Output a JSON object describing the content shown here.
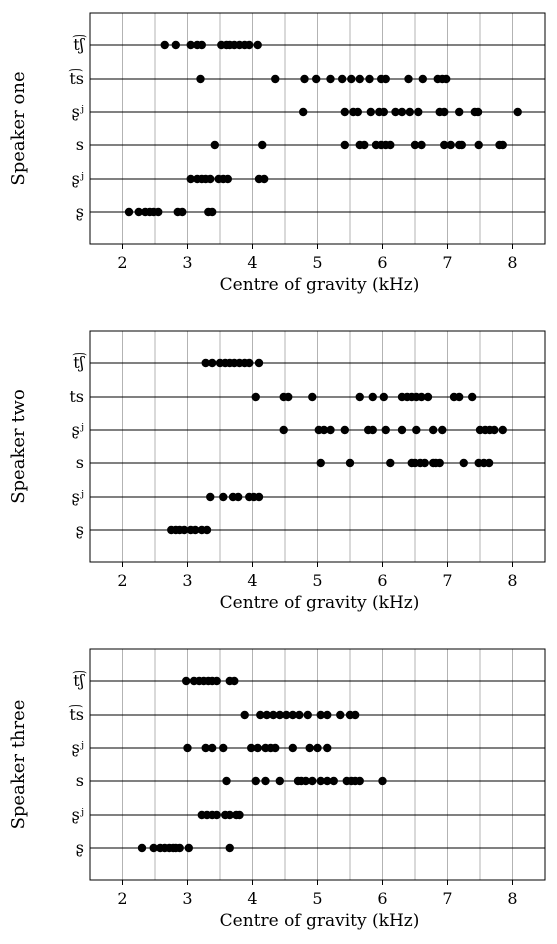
{
  "chart_data": [
    {
      "type": "scatter",
      "ylabel": "Speaker one",
      "xlabel": "Centre of gravity (kHz)",
      "xlim": [
        1.5,
        8.5
      ],
      "x_ticks": [
        "2",
        "3",
        "4",
        "5",
        "6",
        "7",
        "8"
      ],
      "categories": [
        "t͡ʃ",
        "t͡s",
        "ʂʲ",
        "s",
        "ʂʲ",
        "ʂ"
      ],
      "grid": "vertical",
      "series": [
        {
          "category": "t͡ʃ",
          "x": [
            2.65,
            2.82,
            3.05,
            3.15,
            3.22,
            3.52,
            3.6,
            3.65,
            3.72,
            3.8,
            3.88,
            3.95,
            4.08
          ]
        },
        {
          "category": "t͡s",
          "x": [
            3.2,
            4.35,
            4.8,
            4.98,
            5.2,
            5.38,
            5.52,
            5.65,
            5.8,
            5.98,
            6.05,
            6.4,
            6.62,
            6.85,
            6.92,
            6.98
          ]
        },
        {
          "category": "ʂʲ",
          "x": [
            4.78,
            5.42,
            5.55,
            5.62,
            5.82,
            5.95,
            6.02,
            6.2,
            6.3,
            6.42,
            6.55,
            6.88,
            6.95,
            7.18,
            7.42,
            7.47,
            8.08
          ]
        },
        {
          "category": "s",
          "x": [
            3.42,
            4.15,
            5.42,
            5.65,
            5.72,
            5.9,
            5.98,
            6.05,
            6.12,
            6.5,
            6.6,
            6.95,
            7.05,
            7.18,
            7.22,
            7.48,
            7.8,
            7.85
          ]
        },
        {
          "category": "ʂʲ",
          "x": [
            3.05,
            3.15,
            3.22,
            3.28,
            3.35,
            3.48,
            3.55,
            3.62,
            4.1,
            4.18
          ]
        },
        {
          "category": "ʂ",
          "x": [
            2.1,
            2.25,
            2.35,
            2.42,
            2.48,
            2.55,
            2.85,
            2.92,
            3.32,
            3.38
          ]
        }
      ]
    },
    {
      "type": "scatter",
      "ylabel": "Speaker two",
      "xlabel": "Centre of gravity (kHz)",
      "xlim": [
        1.5,
        8.5
      ],
      "x_ticks": [
        "2",
        "3",
        "4",
        "5",
        "6",
        "7",
        "8"
      ],
      "categories": [
        "t͡ʃ",
        "ts",
        "ʂʲ",
        "s",
        "ʂʲ",
        "ʂ"
      ],
      "grid": "vertical",
      "series": [
        {
          "category": "t͡ʃ",
          "x": [
            3.28,
            3.38,
            3.5,
            3.58,
            3.65,
            3.72,
            3.8,
            3.88,
            3.95,
            4.1
          ]
        },
        {
          "category": "ts",
          "x": [
            4.05,
            4.48,
            4.55,
            4.92,
            5.65,
            5.85,
            6.02,
            6.3,
            6.38,
            6.45,
            6.52,
            6.6,
            6.7,
            7.1,
            7.18,
            7.38
          ]
        },
        {
          "category": "ʂʲ",
          "x": [
            4.48,
            5.02,
            5.1,
            5.2,
            5.42,
            5.78,
            5.85,
            6.05,
            6.3,
            6.52,
            6.78,
            6.92,
            7.5,
            7.58,
            7.65,
            7.72,
            7.85
          ]
        },
        {
          "category": "s",
          "x": [
            5.05,
            5.5,
            6.12,
            6.45,
            6.5,
            6.58,
            6.65,
            6.78,
            6.82,
            6.88,
            7.25,
            7.48,
            7.56,
            7.64
          ]
        },
        {
          "category": "ʂʲ",
          "x": [
            3.35,
            3.55,
            3.7,
            3.78,
            3.95,
            4.02,
            4.1
          ]
        },
        {
          "category": "ʂ",
          "x": [
            2.75,
            2.82,
            2.88,
            2.95,
            3.05,
            3.12,
            3.22,
            3.3
          ]
        }
      ]
    },
    {
      "type": "scatter",
      "ylabel": "Speaker three",
      "xlabel": "Centre of gravity (kHz)",
      "xlim": [
        1.5,
        8.5
      ],
      "x_ticks": [
        "2",
        "3",
        "4",
        "5",
        "6",
        "7",
        "8"
      ],
      "categories": [
        "t͡ʃ",
        "t͡s",
        "ʂʲ",
        "s",
        "ʂʲ",
        "ʂ"
      ],
      "grid": "vertical",
      "series": [
        {
          "category": "t͡ʃ",
          "x": [
            2.98,
            3.1,
            3.18,
            3.25,
            3.32,
            3.38,
            3.45,
            3.65,
            3.72
          ]
        },
        {
          "category": "t͡s",
          "x": [
            3.88,
            4.12,
            4.22,
            4.32,
            4.42,
            4.52,
            4.62,
            4.72,
            4.85,
            5.05,
            5.15,
            5.35,
            5.5,
            5.58
          ]
        },
        {
          "category": "ʂʲ",
          "x": [
            3.0,
            3.28,
            3.38,
            3.55,
            3.98,
            4.08,
            4.2,
            4.28,
            4.35,
            4.62,
            4.88,
            5.0,
            5.15
          ]
        },
        {
          "category": "s",
          "x": [
            3.6,
            4.05,
            4.2,
            4.42,
            4.7,
            4.75,
            4.82,
            4.92,
            5.05,
            5.15,
            5.25,
            5.45,
            5.52,
            5.58,
            5.65,
            6.0
          ]
        },
        {
          "category": "ʂʲ",
          "x": [
            3.22,
            3.3,
            3.38,
            3.45,
            3.58,
            3.65,
            3.75,
            3.8
          ]
        },
        {
          "category": "ʂ",
          "x": [
            2.3,
            2.48,
            2.58,
            2.65,
            2.72,
            2.78,
            2.82,
            2.88,
            3.02,
            3.65
          ]
        }
      ]
    }
  ]
}
